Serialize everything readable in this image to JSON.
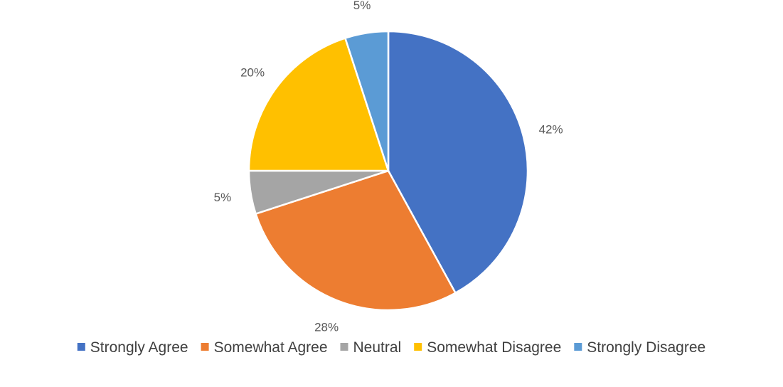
{
  "chart_data": {
    "type": "pie",
    "title": "",
    "slices": [
      {
        "label": "Strongly Agree",
        "value": 42,
        "display": "42%",
        "color": "#4472C4"
      },
      {
        "label": "Somewhat Agree",
        "value": 28,
        "display": "28%",
        "color": "#ED7D31"
      },
      {
        "label": "Neutral",
        "value": 5,
        "display": "5%",
        "color": "#A5A5A5"
      },
      {
        "label": "Somewhat Disagree",
        "value": 20,
        "display": "20%",
        "color": "#FFC000"
      },
      {
        "label": "Strongly Disagree",
        "value": 5,
        "display": "5%",
        "color": "#5B9BD5"
      }
    ],
    "legend_position": "bottom",
    "start_angle": "12 o'clock",
    "direction": "clockwise"
  }
}
